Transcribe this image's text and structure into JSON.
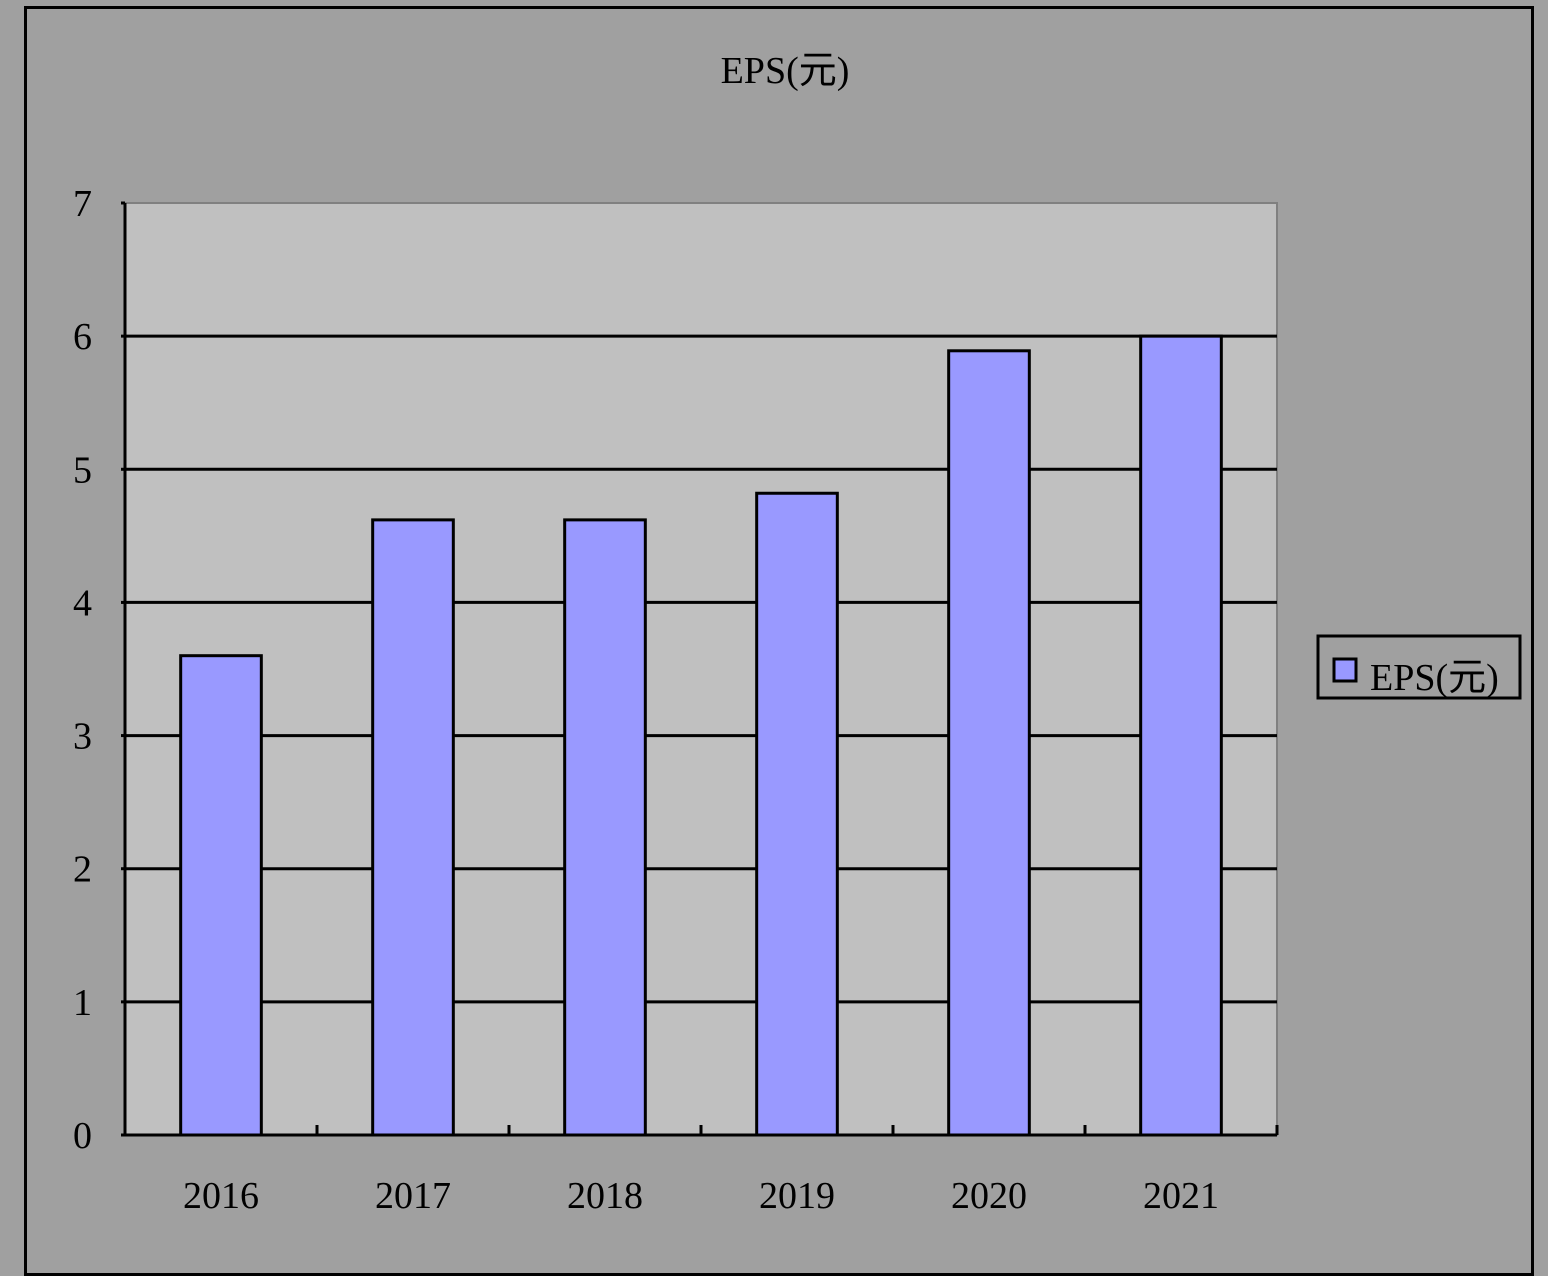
{
  "chart_data": {
    "type": "bar",
    "title": "EPS(元)",
    "categories": [
      "2016",
      "2017",
      "2018",
      "2019",
      "2020",
      "2021"
    ],
    "series": [
      {
        "name": "EPS(元)",
        "values": [
          3.6,
          4.62,
          4.62,
          4.82,
          5.89,
          6.0
        ]
      }
    ],
    "xlabel": "",
    "ylabel": "",
    "ylim": [
      0,
      7
    ],
    "yticks": [
      "0",
      "1",
      "2",
      "3",
      "4",
      "5",
      "6",
      "7"
    ],
    "grid": true,
    "legend": "right",
    "colors": {
      "bar": "#9999ff",
      "plot_bg": "#c0c0c0",
      "page_bg": "#a0a0a0",
      "stroke": "#000000"
    }
  }
}
